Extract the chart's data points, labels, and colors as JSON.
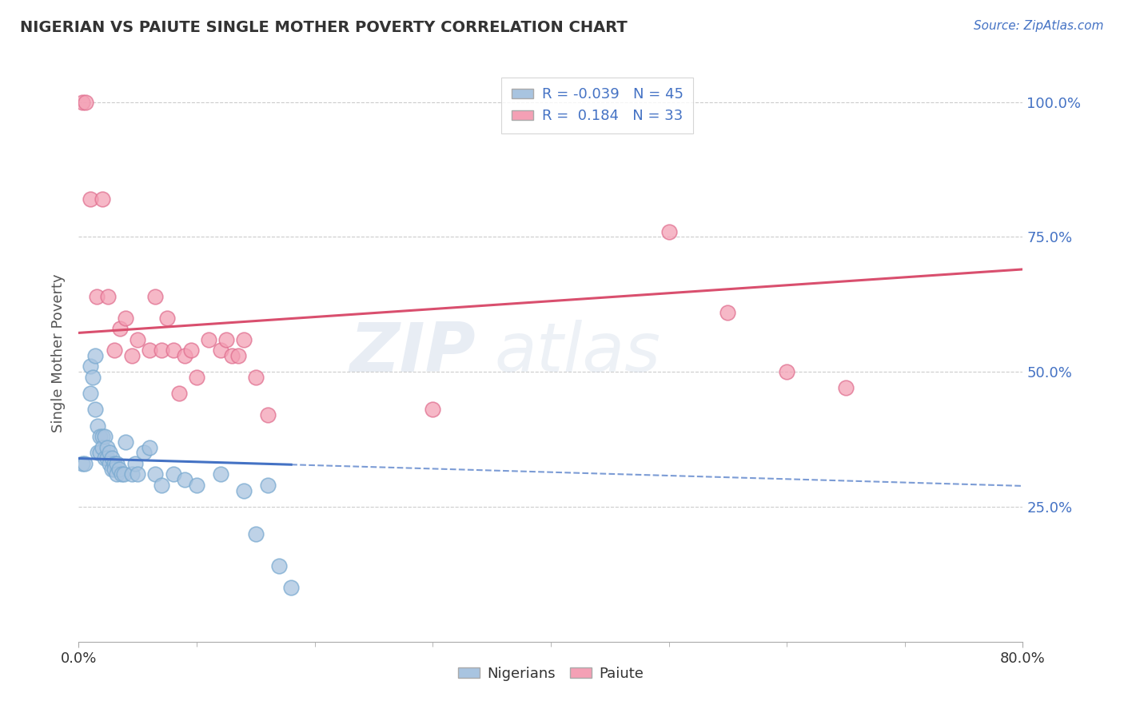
{
  "title": "NIGERIAN VS PAIUTE SINGLE MOTHER POVERTY CORRELATION CHART",
  "source": "Source: ZipAtlas.com",
  "ylabel": "Single Mother Poverty",
  "legend_R": [
    "-0.039",
    "0.184"
  ],
  "legend_N": [
    45,
    33
  ],
  "nigerian_color": "#a8c4e0",
  "nigerian_edge_color": "#7aaad0",
  "paiute_color": "#f4a0b5",
  "paiute_edge_color": "#e07090",
  "nigerian_line_color": "#4472c4",
  "paiute_line_color": "#d94f6e",
  "nigerian_scatter": [
    [
      0.003,
      0.33
    ],
    [
      0.005,
      0.33
    ],
    [
      0.01,
      0.46
    ],
    [
      0.01,
      0.51
    ],
    [
      0.012,
      0.49
    ],
    [
      0.014,
      0.53
    ],
    [
      0.014,
      0.43
    ],
    [
      0.016,
      0.4
    ],
    [
      0.016,
      0.35
    ],
    [
      0.018,
      0.38
    ],
    [
      0.018,
      0.35
    ],
    [
      0.02,
      0.38
    ],
    [
      0.02,
      0.36
    ],
    [
      0.022,
      0.38
    ],
    [
      0.022,
      0.34
    ],
    [
      0.024,
      0.36
    ],
    [
      0.024,
      0.34
    ],
    [
      0.026,
      0.35
    ],
    [
      0.026,
      0.33
    ],
    [
      0.028,
      0.34
    ],
    [
      0.028,
      0.32
    ],
    [
      0.03,
      0.33
    ],
    [
      0.03,
      0.32
    ],
    [
      0.032,
      0.33
    ],
    [
      0.032,
      0.31
    ],
    [
      0.034,
      0.32
    ],
    [
      0.036,
      0.31
    ],
    [
      0.038,
      0.31
    ],
    [
      0.04,
      0.37
    ],
    [
      0.045,
      0.31
    ],
    [
      0.048,
      0.33
    ],
    [
      0.05,
      0.31
    ],
    [
      0.055,
      0.35
    ],
    [
      0.06,
      0.36
    ],
    [
      0.065,
      0.31
    ],
    [
      0.07,
      0.29
    ],
    [
      0.08,
      0.31
    ],
    [
      0.09,
      0.3
    ],
    [
      0.1,
      0.29
    ],
    [
      0.12,
      0.31
    ],
    [
      0.14,
      0.28
    ],
    [
      0.15,
      0.2
    ],
    [
      0.16,
      0.29
    ],
    [
      0.17,
      0.14
    ],
    [
      0.18,
      0.1
    ]
  ],
  "paiute_scatter": [
    [
      0.003,
      1.0
    ],
    [
      0.006,
      1.0
    ],
    [
      0.01,
      0.82
    ],
    [
      0.015,
      0.64
    ],
    [
      0.02,
      0.82
    ],
    [
      0.025,
      0.64
    ],
    [
      0.03,
      0.54
    ],
    [
      0.035,
      0.58
    ],
    [
      0.04,
      0.6
    ],
    [
      0.045,
      0.53
    ],
    [
      0.05,
      0.56
    ],
    [
      0.06,
      0.54
    ],
    [
      0.065,
      0.64
    ],
    [
      0.07,
      0.54
    ],
    [
      0.075,
      0.6
    ],
    [
      0.08,
      0.54
    ],
    [
      0.085,
      0.46
    ],
    [
      0.09,
      0.53
    ],
    [
      0.095,
      0.54
    ],
    [
      0.1,
      0.49
    ],
    [
      0.11,
      0.56
    ],
    [
      0.12,
      0.54
    ],
    [
      0.125,
      0.56
    ],
    [
      0.13,
      0.53
    ],
    [
      0.135,
      0.53
    ],
    [
      0.14,
      0.56
    ],
    [
      0.15,
      0.49
    ],
    [
      0.16,
      0.42
    ],
    [
      0.3,
      0.43
    ],
    [
      0.5,
      0.76
    ],
    [
      0.55,
      0.61
    ],
    [
      0.6,
      0.5
    ],
    [
      0.65,
      0.47
    ]
  ],
  "xlim": [
    0.0,
    0.8
  ],
  "ylim": [
    0.0,
    1.07
  ],
  "ytick_vals": [
    1.0,
    0.75,
    0.5,
    0.25
  ],
  "ytick_labels": [
    "100.0%",
    "75.0%",
    "50.0%",
    "25.0%"
  ],
  "background_color": "#ffffff",
  "grid_color": "#cccccc",
  "nigerian_R": -0.039,
  "paiute_R": 0.184
}
